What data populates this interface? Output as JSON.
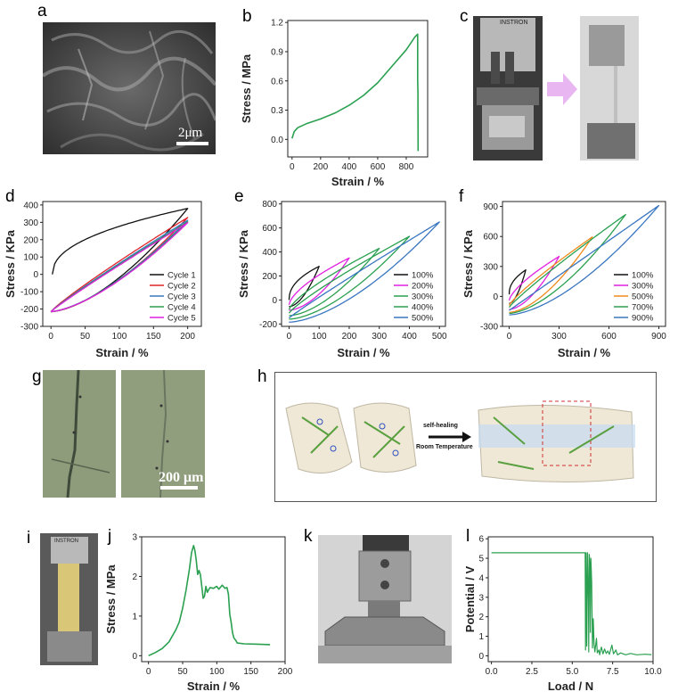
{
  "panel_labels": {
    "a": "a",
    "b": "b",
    "c": "c",
    "d": "d",
    "e": "e",
    "f": "f",
    "g": "g",
    "h": "h",
    "i": "i",
    "j": "j",
    "k": "k",
    "l": "l"
  },
  "scalebars": {
    "a": "2μm",
    "g": "200 μm"
  },
  "photo_c": {
    "brand": "INSTRON"
  },
  "photo_i": {
    "brand": "INSTRON"
  },
  "diagram_h": {
    "arrow_label_top": "self-healing",
    "arrow_label_bottom": "Room Temperature"
  },
  "colors": {
    "green": "#2aa050",
    "black": "#111111",
    "red": "#e0242a",
    "blue": "#3a76c0",
    "magenta": "#e020e0",
    "orange": "#f08a1c",
    "steel": "#4a7fb5"
  },
  "chart_data": [
    {
      "id": "b",
      "type": "line",
      "xlabel": "Strain / %",
      "ylabel": "Stress / MPa",
      "xlim": [
        -30,
        950
      ],
      "ylim": [
        -0.18,
        1.22
      ],
      "xticks": [
        0,
        200,
        400,
        600,
        800
      ],
      "yticks": [
        0.0,
        0.3,
        0.6,
        0.9,
        1.2
      ],
      "ytick_labels": [
        "0.0",
        "0.3",
        "0.6",
        "0.9",
        "1.2"
      ],
      "series": [
        {
          "color": "#2aa050",
          "points": [
            [
              0,
              0.01
            ],
            [
              15,
              0.08
            ],
            [
              40,
              0.12
            ],
            [
              100,
              0.16
            ],
            [
              200,
              0.21
            ],
            [
              300,
              0.27
            ],
            [
              400,
              0.35
            ],
            [
              500,
              0.45
            ],
            [
              600,
              0.58
            ],
            [
              700,
              0.75
            ],
            [
              800,
              0.92
            ],
            [
              860,
              1.05
            ],
            [
              880,
              1.08
            ],
            [
              880,
              0.6
            ],
            [
              882,
              0.49
            ],
            [
              883,
              -0.12
            ]
          ]
        }
      ]
    },
    {
      "id": "d",
      "type": "line",
      "xlabel": "Strain / %",
      "ylabel": "Stress / KPa",
      "xlim": [
        -12,
        220
      ],
      "ylim": [
        -300,
        420
      ],
      "xticks": [
        0,
        50,
        100,
        150,
        200
      ],
      "yticks": [
        -300,
        -200,
        -100,
        0,
        100,
        200,
        300,
        400
      ],
      "legend": {
        "position": "bottom-right",
        "entries": [
          "Cycle 1",
          "Cycle 2",
          "Cycle 3",
          "Cycle 4",
          "Cycle 5"
        ]
      },
      "series": [
        {
          "name": "Cycle 1",
          "color": "#111111",
          "loop": {
            "start": [
              2,
              0
            ],
            "peak": [
              200,
              380
            ],
            "end": [
              0,
              -215
            ],
            "up_start": 45,
            "up_shape": 0.45,
            "down_shape": 1.6
          }
        },
        {
          "name": "Cycle 2",
          "color": "#e0242a",
          "loop": {
            "start": [
              0,
              -215
            ],
            "peak": [
              200,
              328
            ],
            "end": [
              0,
              -215
            ],
            "up_start": -215,
            "up_shape": 0.9,
            "down_shape": 1.55
          }
        },
        {
          "name": "Cycle 3",
          "color": "#3a76c0",
          "loop": {
            "start": [
              0,
              -215
            ],
            "peak": [
              200,
              312
            ],
            "end": [
              0,
              -215
            ],
            "up_start": -215,
            "up_shape": 0.92,
            "down_shape": 1.5
          }
        },
        {
          "name": "Cycle 4",
          "color": "#2aa050",
          "loop": {
            "start": [
              0,
              -215
            ],
            "peak": [
              200,
              303
            ],
            "end": [
              0,
              -215
            ],
            "up_start": -215,
            "up_shape": 0.93,
            "down_shape": 1.5
          }
        },
        {
          "name": "Cycle 5",
          "color": "#e020e0",
          "loop": {
            "start": [
              0,
              -215
            ],
            "peak": [
              200,
              298
            ],
            "end": [
              0,
              -215
            ],
            "up_start": -215,
            "up_shape": 0.94,
            "down_shape": 1.5
          }
        }
      ]
    },
    {
      "id": "e",
      "type": "line",
      "xlabel": "Strain / %",
      "ylabel": "Stress / KPa",
      "xlim": [
        -25,
        520
      ],
      "ylim": [
        -220,
        820
      ],
      "xticks": [
        0,
        100,
        200,
        300,
        400,
        500
      ],
      "yticks": [
        -200,
        0,
        200,
        400,
        600,
        800
      ],
      "legend": {
        "position": "bottom-right",
        "entries": [
          "100%",
          "200%",
          "300%",
          "400%",
          "500%"
        ]
      },
      "series": [
        {
          "name": "100%",
          "color": "#111111",
          "loop": {
            "start": [
              0,
              0
            ],
            "peak": [
              100,
              280
            ],
            "end": [
              0,
              -55
            ],
            "up_shape": 0.45,
            "down_shape": 1.8
          }
        },
        {
          "name": "200%",
          "color": "#e020e0",
          "loop": {
            "start": [
              0,
              -40
            ],
            "peak": [
              200,
              350
            ],
            "end": [
              0,
              -85
            ],
            "up_shape": 0.65,
            "down_shape": 1.7
          }
        },
        {
          "name": "300%",
          "color": "#2aa050",
          "loop": {
            "start": [
              0,
              -80
            ],
            "peak": [
              300,
              430
            ],
            "end": [
              0,
              -130
            ],
            "up_shape": 0.75,
            "down_shape": 1.65
          }
        },
        {
          "name": "400%",
          "color": "#2aa050",
          "loop": {
            "start": [
              0,
              -110
            ],
            "peak": [
              400,
              530
            ],
            "end": [
              0,
              -160
            ],
            "up_shape": 0.85,
            "down_shape": 1.6
          }
        },
        {
          "name": "500%",
          "color": "#3a76c0",
          "loop": {
            "start": [
              0,
              -150
            ],
            "peak": [
              500,
              650
            ],
            "end": [
              0,
              -185
            ],
            "up_shape": 0.95,
            "down_shape": 1.6
          }
        }
      ]
    },
    {
      "id": "f",
      "type": "line",
      "xlabel": "Strain / %",
      "ylabel": "Stress / KPa",
      "xlim": [
        -40,
        940
      ],
      "ylim": [
        -300,
        950
      ],
      "xticks": [
        0,
        300,
        600,
        900
      ],
      "yticks": [
        -300,
        0,
        300,
        600,
        900
      ],
      "legend": {
        "position": "bottom-right",
        "entries": [
          "100%",
          "300%",
          "500%",
          "700%",
          "900%"
        ]
      },
      "series": [
        {
          "name": "100%",
          "color": "#111111",
          "loop": {
            "start": [
              0,
              20
            ],
            "peak": [
              100,
              265
            ],
            "end": [
              0,
              -70
            ],
            "up_shape": 0.45,
            "down_shape": 1.8
          }
        },
        {
          "name": "300%",
          "color": "#e020e0",
          "loop": {
            "start": [
              0,
              -40
            ],
            "peak": [
              300,
              400
            ],
            "end": [
              0,
              -130
            ],
            "up_shape": 0.7,
            "down_shape": 1.7
          }
        },
        {
          "name": "500%",
          "color": "#f08a1c",
          "loop": {
            "start": [
              0,
              -90
            ],
            "peak": [
              500,
              595
            ],
            "end": [
              0,
              -160
            ],
            "up_shape": 0.85,
            "down_shape": 1.65
          }
        },
        {
          "name": "700%",
          "color": "#2aa050",
          "loop": {
            "start": [
              0,
              -110
            ],
            "peak": [
              700,
              820
            ],
            "end": [
              0,
              -170
            ],
            "up_shape": 0.9,
            "down_shape": 1.6
          }
        },
        {
          "name": "900%",
          "color": "#3a76c0",
          "loop": {
            "start": [
              0,
              -140
            ],
            "peak": [
              900,
              910
            ],
            "end": [
              0,
              -185
            ],
            "up_shape": 1.0,
            "down_shape": 1.6
          }
        }
      ]
    },
    {
      "id": "j",
      "type": "line",
      "xlabel": "Strain / %",
      "ylabel": "Stress / MPa",
      "xlim": [
        -10,
        200
      ],
      "ylim": [
        -0.15,
        3.0
      ],
      "xticks": [
        0,
        50,
        100,
        150,
        200
      ],
      "yticks": [
        0,
        1,
        2,
        3
      ],
      "series": [
        {
          "color": "#2aa050",
          "points": [
            [
              0,
              0.0
            ],
            [
              10,
              0.08
            ],
            [
              20,
              0.18
            ],
            [
              30,
              0.35
            ],
            [
              40,
              0.65
            ],
            [
              45,
              0.85
            ],
            [
              50,
              1.2
            ],
            [
              55,
              1.65
            ],
            [
              60,
              2.2
            ],
            [
              63,
              2.6
            ],
            [
              66,
              2.78
            ],
            [
              68,
              2.65
            ],
            [
              70,
              2.4
            ],
            [
              72,
              2.05
            ],
            [
              74,
              2.15
            ],
            [
              76,
              2.05
            ],
            [
              78,
              1.75
            ],
            [
              80,
              1.45
            ],
            [
              82,
              1.5
            ],
            [
              84,
              1.75
            ],
            [
              86,
              1.6
            ],
            [
              90,
              1.72
            ],
            [
              95,
              1.7
            ],
            [
              100,
              1.75
            ],
            [
              103,
              1.68
            ],
            [
              105,
              1.72
            ],
            [
              108,
              1.78
            ],
            [
              112,
              1.7
            ],
            [
              115,
              1.72
            ],
            [
              117,
              1.55
            ],
            [
              119,
              1.05
            ],
            [
              121,
              0.85
            ],
            [
              123,
              0.58
            ],
            [
              125,
              0.45
            ],
            [
              128,
              0.38
            ],
            [
              130,
              0.32
            ],
            [
              140,
              0.3
            ],
            [
              160,
              0.29
            ],
            [
              178,
              0.28
            ]
          ]
        }
      ]
    },
    {
      "id": "l",
      "type": "line",
      "xlabel": "Load / N",
      "ylabel": "Potential / V",
      "xlim": [
        -0.2,
        10.0
      ],
      "ylim": [
        -0.3,
        6.1
      ],
      "xticks": [
        0.0,
        2.5,
        5.0,
        7.5,
        10.0
      ],
      "xtick_labels": [
        "0.0",
        "2.5",
        "5.0",
        "7.5",
        "10.0"
      ],
      "yticks": [
        0,
        1,
        2,
        3,
        4,
        5,
        6
      ],
      "series": [
        {
          "color": "#2aa050",
          "points": [
            [
              0,
              5.28
            ],
            [
              5.8,
              5.28
            ],
            [
              5.82,
              0.3
            ],
            [
              5.86,
              5.28
            ],
            [
              5.9,
              0.5
            ],
            [
              5.95,
              5.28
            ],
            [
              6.0,
              2.8
            ],
            [
              6.02,
              0.2
            ],
            [
              6.05,
              5.2
            ],
            [
              6.1,
              4.6
            ],
            [
              6.12,
              1.2
            ],
            [
              6.15,
              5.0
            ],
            [
              6.2,
              3.8
            ],
            [
              6.25,
              0.4
            ],
            [
              6.3,
              1.9
            ],
            [
              6.35,
              0.6
            ],
            [
              6.4,
              0.2
            ],
            [
              6.5,
              0.9
            ],
            [
              6.55,
              0.15
            ],
            [
              6.65,
              0.3
            ],
            [
              6.7,
              0.05
            ],
            [
              6.8,
              0.45
            ],
            [
              6.9,
              0.1
            ],
            [
              7.0,
              0.35
            ],
            [
              7.1,
              0.12
            ],
            [
              7.2,
              0.25
            ],
            [
              7.3,
              0.08
            ],
            [
              7.45,
              0.55
            ],
            [
              7.55,
              0.1
            ],
            [
              7.7,
              0.3
            ],
            [
              7.8,
              0.05
            ],
            [
              8.0,
              0.15
            ],
            [
              8.3,
              0.05
            ],
            [
              8.6,
              0.12
            ],
            [
              9.0,
              0.05
            ],
            [
              9.5,
              0.08
            ],
            [
              9.9,
              0.06
            ]
          ]
        }
      ]
    }
  ]
}
